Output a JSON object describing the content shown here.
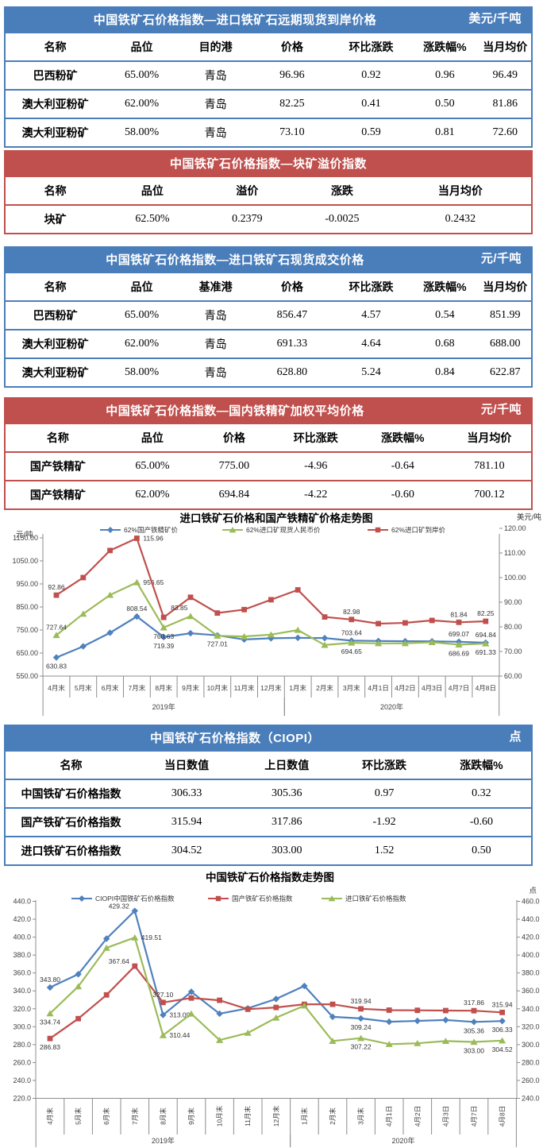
{
  "colors": {
    "table_blue": "#4A7EBB",
    "table_red": "#C0504D",
    "series_blue": "#4F81BD",
    "series_red": "#C0504D",
    "series_green": "#9BBB59"
  },
  "tables": [
    {
      "theme": "blue",
      "title": "中国铁矿石价格指数—进口铁矿石远期现货到岸价格",
      "unit": "美元/千吨",
      "columns": [
        "名称",
        "品位",
        "目的港",
        "价格",
        "环比涨跌",
        "涨跌幅%",
        "当月均价"
      ],
      "rows": [
        [
          "巴西粉矿",
          "65.00%",
          "青岛",
          "96.96",
          "0.92",
          "0.96",
          "96.49"
        ],
        [
          "澳大利亚粉矿",
          "62.00%",
          "青岛",
          "82.25",
          "0.41",
          "0.50",
          "81.86"
        ],
        [
          "澳大利亚粉矿",
          "58.00%",
          "青岛",
          "73.10",
          "0.59",
          "0.81",
          "72.60"
        ]
      ]
    },
    {
      "theme": "red",
      "title": "中国铁矿石价格指数—块矿溢价指数",
      "unit": "",
      "columns": [
        "名称",
        "品位",
        "溢价",
        "涨跌",
        "当月均价"
      ],
      "rows": [
        [
          "块矿",
          "62.50%",
          "0.2379",
          "-0.0025",
          "0.2432"
        ]
      ]
    },
    {
      "theme": "blue",
      "title": "中国铁矿石价格指数—进口铁矿石现货成交价格",
      "unit": "元/千吨",
      "columns": [
        "名称",
        "品位",
        "基准港",
        "价格",
        "环比涨跌",
        "涨跌幅%",
        "当月均价"
      ],
      "rows": [
        [
          "巴西粉矿",
          "65.00%",
          "青岛",
          "856.47",
          "4.57",
          "0.54",
          "851.99"
        ],
        [
          "澳大利亚粉矿",
          "62.00%",
          "青岛",
          "691.33",
          "4.64",
          "0.68",
          "688.00"
        ],
        [
          "澳大利亚粉矿",
          "58.00%",
          "青岛",
          "628.80",
          "5.24",
          "0.84",
          "622.87"
        ]
      ]
    },
    {
      "theme": "red",
      "title": "中国铁矿石价格指数—国内铁精矿加权平均价格",
      "unit": "元/千吨",
      "columns": [
        "名称",
        "品位",
        "价格",
        "环比涨跌",
        "涨跌幅%",
        "当月均价"
      ],
      "rows": [
        [
          "国产铁精矿",
          "65.00%",
          "775.00",
          "-4.96",
          "-0.64",
          "781.10"
        ],
        [
          "国产铁精矿",
          "62.00%",
          "694.84",
          "-4.22",
          "-0.60",
          "700.12"
        ]
      ]
    },
    {
      "theme": "blue",
      "title": "中国铁矿石价格指数（CIOPI）",
      "unit": "点",
      "columns": [
        "名称",
        "当日数值",
        "上日数值",
        "环比涨跌",
        "涨跌幅%"
      ],
      "rows": [
        [
          "中国铁矿石价格指数",
          "306.33",
          "305.36",
          "0.97",
          "0.32"
        ],
        [
          "国产铁矿石价格指数",
          "315.94",
          "317.86",
          "-1.92",
          "-0.60"
        ],
        [
          "进口铁矿石价格指数",
          "304.52",
          "303.00",
          "1.52",
          "0.50"
        ]
      ]
    }
  ],
  "chart_data": [
    {
      "type": "line",
      "title": "进口铁矿石价格和国产铁精矿价格走势图",
      "unit_left": "元/吨",
      "unit_right": "美元/吨",
      "categories": [
        "4月末",
        "5月末",
        "6月末",
        "7月末",
        "8月末",
        "9月末",
        "10月末",
        "11月末",
        "12月末",
        "1月末",
        "2月末",
        "3月末",
        "4月1日",
        "4月2日",
        "4月3日",
        "4月7日",
        "4月8日"
      ],
      "groups": [
        {
          "label": "2019年",
          "from": 0,
          "to": 8
        },
        {
          "label": "2020年",
          "from": 9,
          "to": 16
        }
      ],
      "left_axis": {
        "min": 550,
        "max": 1150,
        "ticks": [
          "1150.00",
          "1050.00",
          "950.00",
          "850.00",
          "750.00",
          "650.00",
          "550.00"
        ]
      },
      "right_axis": {
        "min": 60,
        "max": 120,
        "ticks": [
          "120.00",
          "110.00",
          "100.00",
          "90.00",
          "80.00",
          "70.00",
          "60.00"
        ]
      },
      "legend_position": "top",
      "grid": false,
      "series": [
        {
          "name": "62%国产铁精矿价",
          "color": "#4F81BD",
          "marker": "diamond",
          "axis": "left",
          "values": [
            630.83,
            679,
            738,
            808.54,
            719.39,
            736,
            727.01,
            709,
            714,
            716,
            715,
            703.64,
            702.5,
            701.5,
            701,
            699.07,
            694.84
          ],
          "point_labels": [
            {
              "i": 0,
              "text": "630.83",
              "pos": "b"
            },
            {
              "i": 3,
              "text": "808.54",
              "pos": "a"
            },
            {
              "i": 4,
              "text": "719.39",
              "pos": "b"
            },
            {
              "i": 6,
              "text": "727.01",
              "pos": "b"
            },
            {
              "i": 11,
              "text": "703.64",
              "pos": "a"
            },
            {
              "i": 15,
              "text": "699.07",
              "pos": "a"
            },
            {
              "i": 16,
              "text": "694.84",
              "pos": "a"
            }
          ]
        },
        {
          "name": "62%进口矿现货人民币价",
          "color": "#9BBB59",
          "marker": "triangle",
          "axis": "left",
          "values": [
            727.64,
            820,
            902,
            956.65,
            760.63,
            810,
            725,
            722,
            730,
            750,
            685,
            694.65,
            692,
            692,
            697,
            686.69,
            691.33
          ],
          "point_labels": [
            {
              "i": 0,
              "text": "727.64",
              "pos": "a"
            },
            {
              "i": 3,
              "text": "956.65",
              "pos": "r"
            },
            {
              "i": 4,
              "text": "760.63",
              "pos": "b"
            },
            {
              "i": 11,
              "text": "694.65",
              "pos": "b"
            },
            {
              "i": 15,
              "text": "686.69",
              "pos": "b"
            },
            {
              "i": 16,
              "text": "691.33",
              "pos": "b"
            }
          ]
        },
        {
          "name": "62%进口矿到岸价",
          "color": "#C0504D",
          "marker": "square",
          "axis": "right",
          "values": [
            92.86,
            100.0,
            111.0,
            115.96,
            83.85,
            92.0,
            85.6,
            87.0,
            91.0,
            95.0,
            84.0,
            82.98,
            81.3,
            81.6,
            82.6,
            81.84,
            82.25
          ],
          "point_labels": [
            {
              "i": 0,
              "text": "92.86",
              "pos": "a"
            },
            {
              "i": 3,
              "text": "115.96",
              "pos": "r"
            },
            {
              "i": 4,
              "text": "83.85",
              "pos": "ar"
            },
            {
              "i": 11,
              "text": "82.98",
              "pos": "a"
            },
            {
              "i": 15,
              "text": "81.84",
              "pos": "a"
            },
            {
              "i": 16,
              "text": "82.25",
              "pos": "a"
            }
          ]
        }
      ]
    },
    {
      "type": "line",
      "title": "中国铁矿石价格指数走势图",
      "unit_left": "",
      "unit_right": "点",
      "categories": [
        "4月末",
        "5月末",
        "6月末",
        "7月末",
        "8月末",
        "9月末",
        "10月末",
        "11月末",
        "12月末",
        "1月末",
        "2月末",
        "3月末",
        "4月1日",
        "4月2日",
        "4月3日",
        "4月7日",
        "4月8日"
      ],
      "groups": [
        {
          "label": "2019年",
          "from": 0,
          "to": 8
        },
        {
          "label": "2020年",
          "from": 9,
          "to": 16
        }
      ],
      "left_axis": {
        "min": 220,
        "max": 440,
        "ticks": [
          "440.0",
          "420.0",
          "400.0",
          "380.0",
          "360.0",
          "340.0",
          "320.0",
          "300.0",
          "280.0",
          "260.0",
          "240.0",
          "220.0"
        ]
      },
      "right_axis": {
        "min": 240,
        "max": 460,
        "ticks": [
          "460.0",
          "440.0",
          "420.0",
          "400.0",
          "380.0",
          "360.0",
          "340.0",
          "320.0",
          "300.0",
          "280.0",
          "260.0",
          "240.0"
        ]
      },
      "legend_position": "top",
      "grid": false,
      "series": [
        {
          "name": "CIOPI中国铁矿石价格指数",
          "color": "#4F81BD",
          "marker": "diamond",
          "axis": "left",
          "values": [
            343.8,
            358.6,
            398.3,
            429.32,
            313.09,
            339,
            314.5,
            320.5,
            331,
            345.5,
            311,
            309.24,
            305.5,
            306.5,
            307.5,
            305.36,
            306.33
          ],
          "point_labels": [
            {
              "i": 0,
              "text": "343.80",
              "pos": "a"
            },
            {
              "i": 3,
              "text": "429.32",
              "pos": "l"
            },
            {
              "i": 4,
              "text": "313.09",
              "pos": "r"
            },
            {
              "i": 11,
              "text": "309.24",
              "pos": "b"
            },
            {
              "i": 15,
              "text": "305.36",
              "pos": "b"
            },
            {
              "i": 16,
              "text": "306.33",
              "pos": "b"
            }
          ]
        },
        {
          "name": "国产铁矿石价格指数",
          "color": "#C0504D",
          "marker": "square",
          "axis": "left",
          "values": [
            286.83,
            309,
            335.5,
            367.64,
            327.1,
            332,
            329.5,
            319.5,
            321.5,
            325,
            325,
            319.94,
            318.5,
            318.3,
            318,
            317.86,
            315.94
          ],
          "point_labels": [
            {
              "i": 0,
              "text": "286.83",
              "pos": "b"
            },
            {
              "i": 3,
              "text": "367.64",
              "pos": "l"
            },
            {
              "i": 4,
              "text": "327.10",
              "pos": "a"
            },
            {
              "i": 11,
              "text": "319.94",
              "pos": "a"
            },
            {
              "i": 15,
              "text": "317.86",
              "pos": "a"
            },
            {
              "i": 16,
              "text": "315.94",
              "pos": "a"
            }
          ]
        },
        {
          "name": "进口铁矿石价格指数",
          "color": "#9BBB59",
          "marker": "triangle",
          "axis": "right",
          "values": [
            334.74,
            365,
            408,
            419.51,
            310.44,
            334.5,
            305,
            313,
            330,
            343.5,
            304,
            307.22,
            300.5,
            301.5,
            304,
            303.0,
            304.52
          ],
          "point_labels": [
            {
              "i": 0,
              "text": "334.74",
              "pos": "b"
            },
            {
              "i": 3,
              "text": "419.51",
              "pos": "r"
            },
            {
              "i": 4,
              "text": "310.44",
              "pos": "r"
            },
            {
              "i": 11,
              "text": "307.22",
              "pos": "b"
            },
            {
              "i": 15,
              "text": "303.00",
              "pos": "b"
            },
            {
              "i": 16,
              "text": "304.52",
              "pos": "b"
            }
          ]
        }
      ]
    }
  ]
}
